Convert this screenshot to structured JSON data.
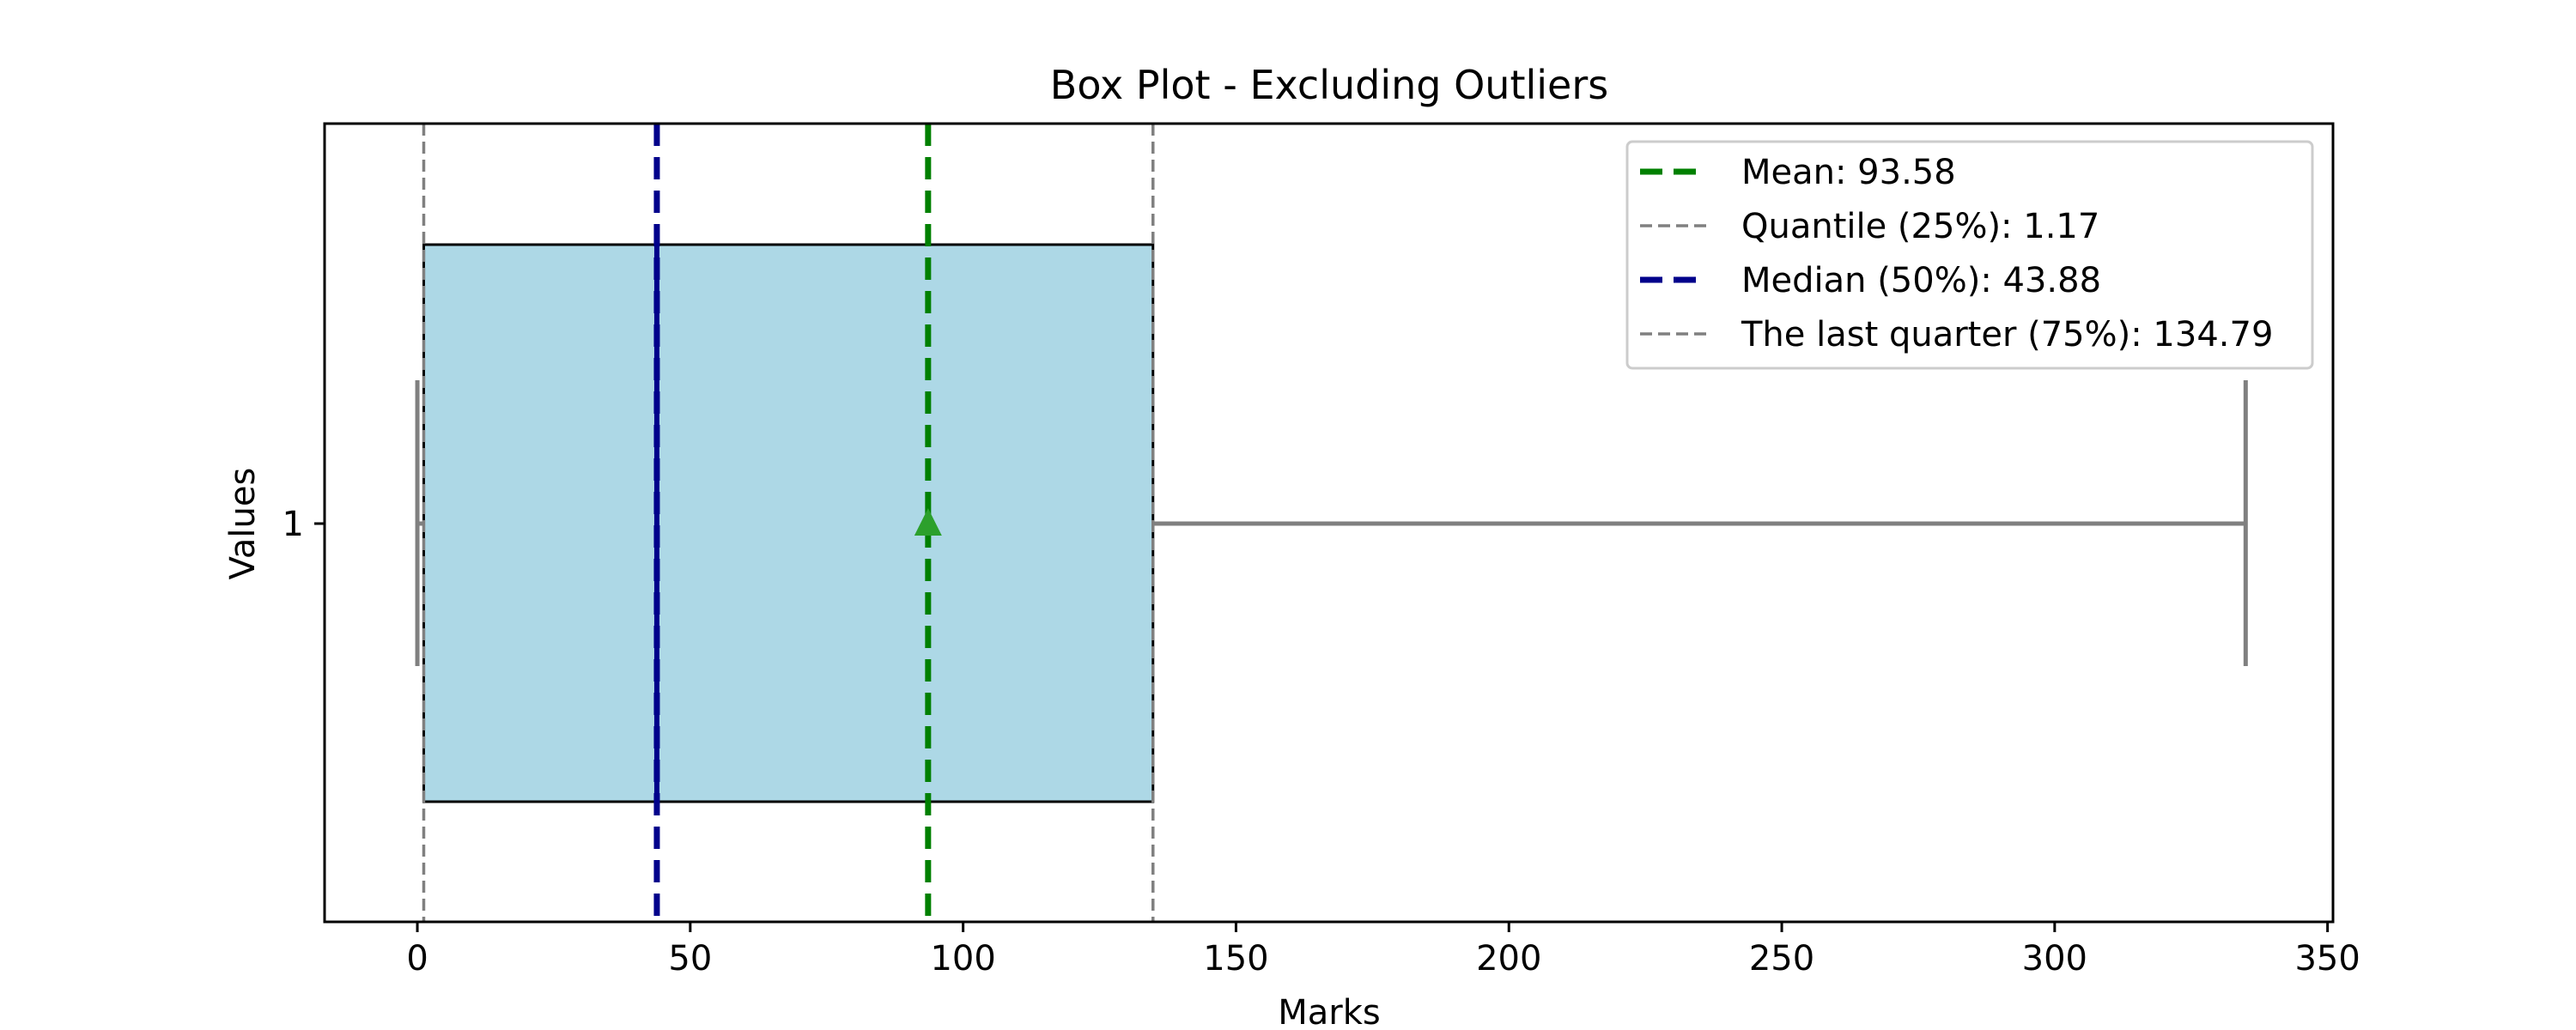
{
  "chart_data": {
    "type": "box",
    "title": "Box Plot - Excluding Outliers",
    "xlabel": "Marks",
    "ylabel": "Values",
    "orientation": "horizontal",
    "xlim": [
      -17,
      351
    ],
    "x_ticks": [
      0,
      50,
      100,
      150,
      200,
      250,
      300,
      350
    ],
    "y_ticks": [
      "1"
    ],
    "box": {
      "category": "1",
      "whisker_low": 0,
      "q1": 1.17,
      "median": 43.88,
      "q3": 134.79,
      "whisker_high": 335,
      "mean": 93.58,
      "showfliers": false
    },
    "reference_lines": [
      {
        "label": "Mean: 93.58",
        "value": 93.58,
        "color": "#008000",
        "style": "dashed-bold"
      },
      {
        "label": "Quantile (25%): 1.17",
        "value": 1.17,
        "color": "#808080",
        "style": "dashed-thin"
      },
      {
        "label": "Median (50%): 43.88",
        "value": 43.88,
        "color": "#00008b",
        "style": "dashed-bold"
      },
      {
        "label": "The last quarter (75%): 134.79",
        "value": 134.79,
        "color": "#808080",
        "style": "dashed-thin"
      }
    ],
    "legend_position": "upper right",
    "colors": {
      "box_fill": "#add8e6",
      "box_edge": "#000000",
      "whisker": "#808080",
      "median_line": "#00008b",
      "mean_marker": "#2ca02c"
    }
  }
}
